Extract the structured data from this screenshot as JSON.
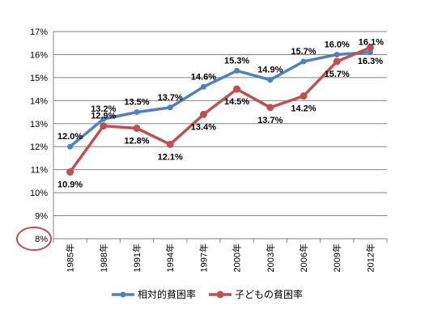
{
  "chart_data": {
    "type": "line",
    "categories": [
      "1985年",
      "1988年",
      "1991年",
      "1994年",
      "1997年",
      "2000年",
      "2003年",
      "2006年",
      "2009年",
      "2012年"
    ],
    "ylim": [
      8,
      17
    ],
    "y_ticks": [
      "8%",
      "9%",
      "10%",
      "11%",
      "12%",
      "13%",
      "14%",
      "15%",
      "16%",
      "17%"
    ],
    "grid": true,
    "legend_position": "bottom",
    "series": [
      {
        "name": "相対的貧困率",
        "color": "#4f81bd",
        "values": [
          12.0,
          13.2,
          13.5,
          13.7,
          14.6,
          15.3,
          14.9,
          15.7,
          16.0,
          16.1
        ],
        "labels": [
          "12.0%",
          "13.2%",
          "13.5%",
          "13.7%",
          "14.6%",
          "15.3%",
          "14.9%",
          "15.7%",
          "16.0%",
          "16.1%"
        ]
      },
      {
        "name": "子どもの貧困率",
        "color": "#c0504d",
        "values": [
          10.9,
          12.9,
          12.8,
          12.1,
          13.4,
          14.5,
          13.7,
          14.2,
          15.7,
          16.3
        ],
        "labels": [
          "10.9%",
          "12.9%",
          "12.8%",
          "12.1%",
          "13.4%",
          "14.5%",
          "13.7%",
          "14.2%",
          "15.7%",
          "16.3%"
        ]
      }
    ],
    "annotation": {
      "shape": "circle",
      "target_tick": "8%",
      "color": "#c0504d"
    }
  }
}
